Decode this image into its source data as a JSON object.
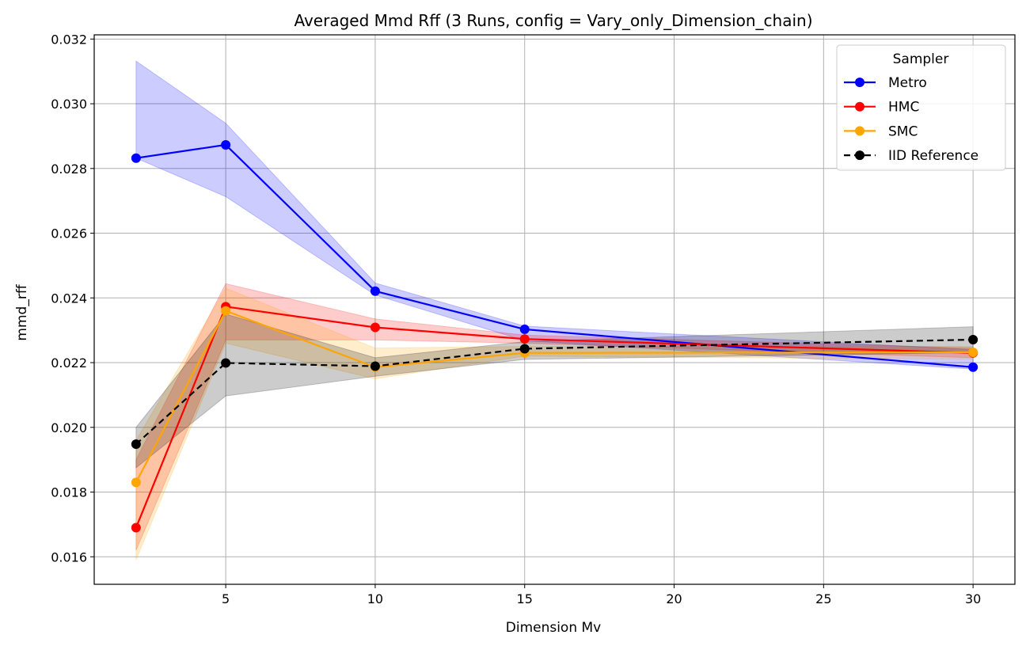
{
  "chart_data": {
    "type": "line",
    "title": "Averaged Mmd Rff (3 Runs, config = Vary_only_Dimension_chain)",
    "xlabel": "Dimension Mv",
    "ylabel": "mmd_rff",
    "xlim": [
      0.6,
      31.4
    ],
    "ylim": [
      0.01515,
      0.03213
    ],
    "xticks": [
      5,
      10,
      15,
      20,
      25,
      30
    ],
    "yticks": [
      0.016,
      0.018,
      0.02,
      0.022,
      0.024,
      0.026,
      0.028,
      0.03,
      0.032
    ],
    "ytick_labels": [
      "0.016",
      "0.018",
      "0.020",
      "0.022",
      "0.024",
      "0.026",
      "0.028",
      "0.030",
      "0.032"
    ],
    "grid": true,
    "legend": {
      "title": "Sampler",
      "placement": "top-right"
    },
    "x": [
      2,
      5,
      10,
      15,
      30
    ],
    "series": [
      {
        "name": "Metro",
        "color": "#0000ff",
        "dashed": false,
        "values": [
          0.02832,
          0.02873,
          0.02421,
          0.02303,
          0.02186
        ],
        "band_low": [
          0.02832,
          0.02713,
          0.02409,
          0.02268,
          0.0218
        ],
        "band_high": [
          0.03132,
          0.0294,
          0.02446,
          0.02313,
          0.0224
        ]
      },
      {
        "name": "HMC",
        "color": "#ff0000",
        "dashed": false,
        "values": [
          0.0169,
          0.02373,
          0.02309,
          0.02273,
          0.0223
        ],
        "band_low": [
          0.0162,
          0.0227,
          0.0227,
          0.0226,
          0.02215
        ],
        "band_high": [
          0.019,
          0.02444,
          0.02335,
          0.02285,
          0.02245
        ]
      },
      {
        "name": "SMC",
        "color": "#ffa500",
        "dashed": false,
        "values": [
          0.0183,
          0.0236,
          0.02186,
          0.0223,
          0.02232
        ],
        "band_low": [
          0.0159,
          0.0226,
          0.0215,
          0.0222,
          0.0221
        ],
        "band_high": [
          0.0196,
          0.0243,
          0.02245,
          0.0225,
          0.0225
        ]
      },
      {
        "name": "IID Reference",
        "color": "#000000",
        "dashed": true,
        "values": [
          0.01948,
          0.02199,
          0.02189,
          0.02243,
          0.02271
        ],
        "band_low": [
          0.01875,
          0.02097,
          0.02158,
          0.0221,
          0.02231
        ],
        "band_high": [
          0.02,
          0.0235,
          0.02215,
          0.02265,
          0.02311
        ]
      }
    ]
  }
}
